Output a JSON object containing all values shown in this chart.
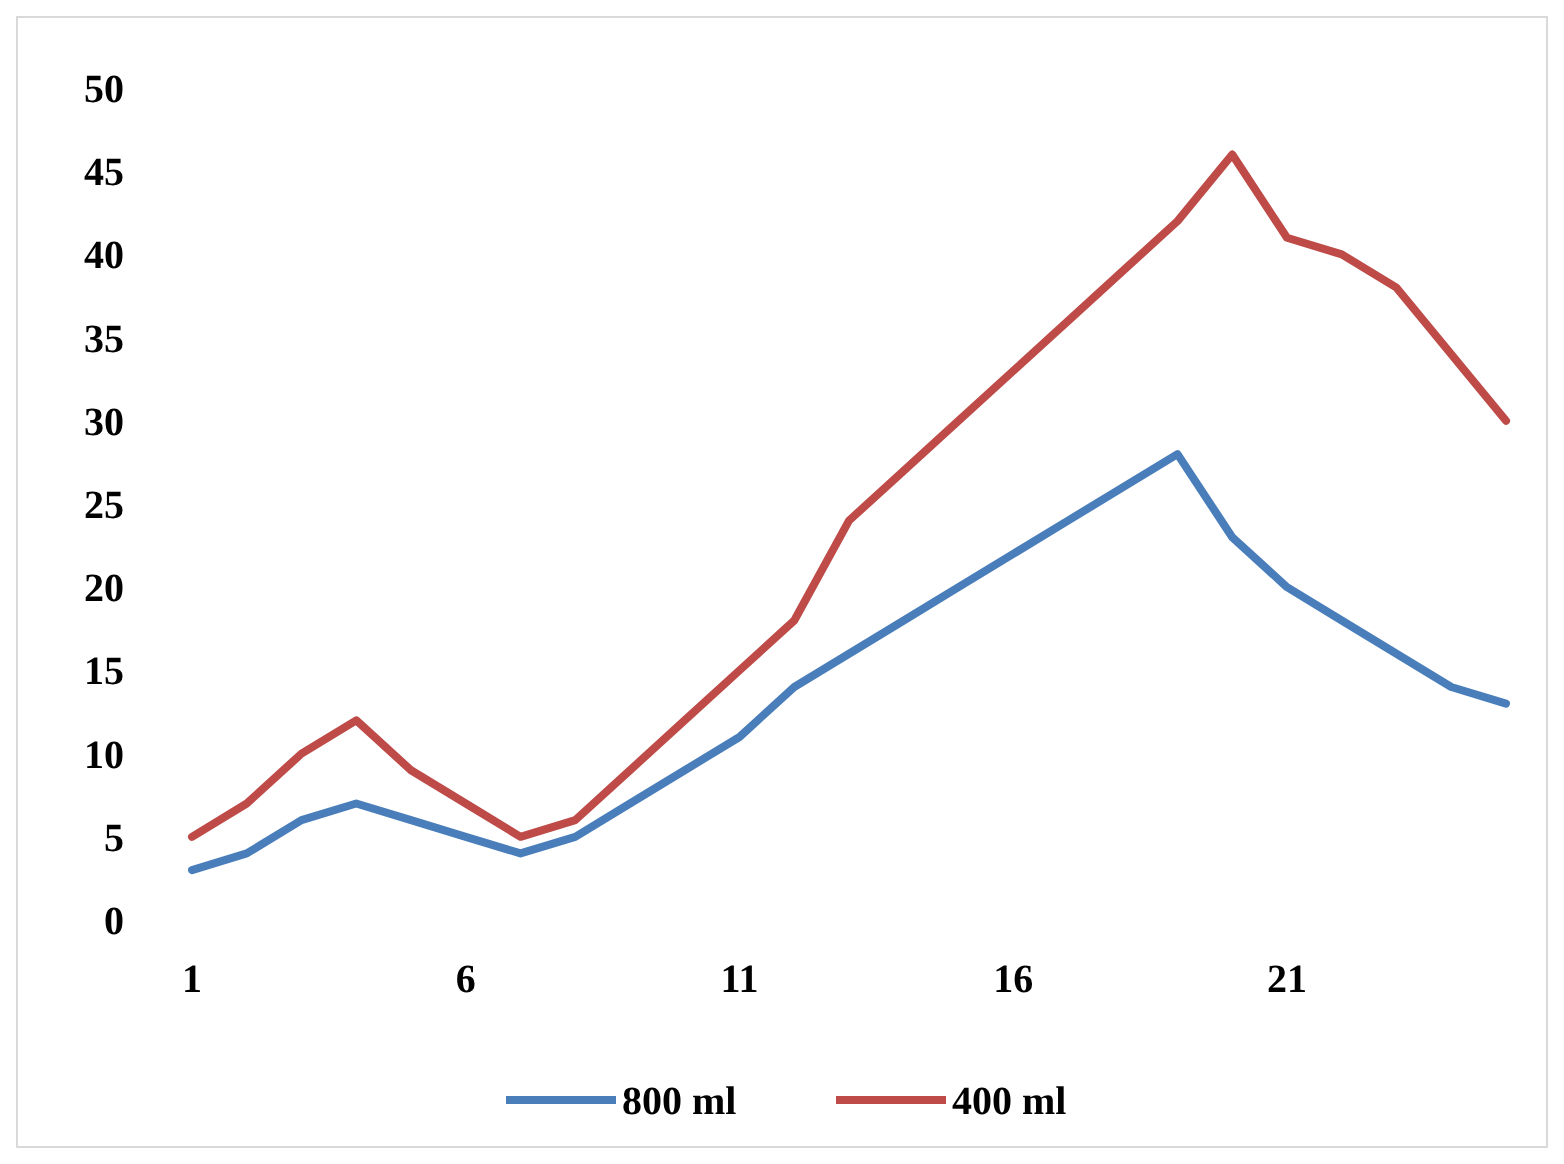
{
  "chart_data": {
    "type": "line",
    "categories": [
      "1",
      null,
      null,
      null,
      null,
      "6",
      null,
      null,
      null,
      null,
      "11",
      null,
      null,
      null,
      null,
      "16",
      null,
      null,
      null,
      null,
      "21",
      null,
      null,
      null,
      null
    ],
    "series": [
      {
        "name": "800 ml",
        "color": "#4a7ebb",
        "values": [
          3,
          4,
          6,
          7,
          6,
          5,
          4,
          5,
          7,
          9,
          11,
          14,
          16,
          18,
          20,
          22,
          24,
          26,
          28,
          23,
          20,
          18,
          16,
          14,
          13
        ]
      },
      {
        "name": "400 ml",
        "color": "#be4b48",
        "values": [
          5,
          7,
          10,
          12,
          9,
          7,
          5,
          6,
          9,
          12,
          15,
          18,
          24,
          27,
          30,
          33,
          36,
          39,
          42,
          46,
          41,
          40,
          38,
          34,
          30
        ]
      }
    ],
    "ylim": [
      0,
      50
    ],
    "yticks": [
      0,
      5,
      10,
      15,
      20,
      25,
      30,
      35,
      40,
      45,
      50
    ],
    "grid": false,
    "legend": "bottom",
    "marker": "none",
    "line_style": "solid"
  }
}
